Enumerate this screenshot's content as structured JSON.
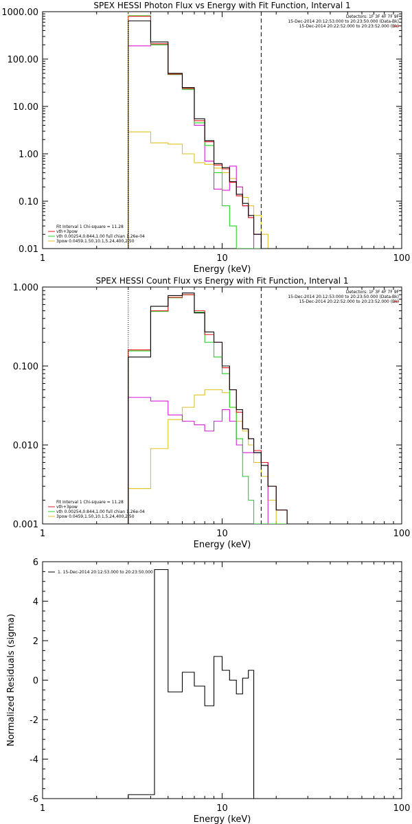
{
  "colors": {
    "black": "#000000",
    "red": "#e8141a",
    "green": "#1fd41f",
    "magenta": "#d81ad8",
    "yellow": "#e0c21c"
  },
  "chart_data": [
    {
      "type": "line",
      "step": true,
      "title": "SPEX HESSI Photon Flux vs Energy with Fit Function, Interval 1",
      "xlabel": "Energy (keV)",
      "ylabel": "",
      "xscale": "log",
      "yscale": "log",
      "xlim": [
        1,
        100
      ],
      "ylim": [
        0.01,
        1000
      ],
      "x_ticks": [
        "1",
        "10",
        "100"
      ],
      "y_ticks": [
        "0.01",
        "0.10",
        "1.00",
        "10.00",
        "100.00",
        "1000.00"
      ],
      "vlines": [
        {
          "x": 3.0,
          "style": "dotted",
          "color": "yellow"
        },
        {
          "x": 16.5,
          "style": "dashed",
          "color": "black"
        }
      ],
      "header_text": [
        "Detectors: 1F 3F 4F 7F 9F",
        "15-Dec-2014 20:12:53.000 to 20:23:50.000 (Data-Bk)",
        "15-Dec-2014 20:22:52.000 to 20:23:52.000 (Bk)"
      ],
      "legend_text": [
        "Fit Interval 1   Chi-square = 11.28",
        "vth+3pow",
        "vth 0.00254,0.844,1.00  full chian 1.26e-04",
        "3pow 0.0459,1.50,10.1,5.24,400,2.50"
      ],
      "bin_edges": [
        3.0,
        4.0,
        5.0,
        6.0,
        7.0,
        8.0,
        9.0,
        10.0,
        11.0,
        12.0,
        13.0,
        14.0,
        15.0,
        16.5,
        18.0,
        20.0
      ],
      "series": [
        {
          "color": "black",
          "values": [
            640,
            230,
            50,
            25,
            5.5,
            1.9,
            0.62,
            0.51,
            0.26,
            0.14,
            0.09,
            0.05,
            0.02,
            0.01,
            0.01
          ]
        },
        {
          "color": "red",
          "values": [
            800,
            210,
            48,
            24,
            5.0,
            1.8,
            0.58,
            0.48,
            0.25,
            0.13,
            0.08,
            0.045,
            0.02,
            0.01,
            0.01
          ]
        },
        {
          "color": "green",
          "values": [
            820,
            200,
            47,
            23,
            4.5,
            1.5,
            0.4,
            0.08,
            0.03,
            0.01,
            0.01,
            0.01,
            0.01,
            0.01,
            0.01
          ]
        },
        {
          "color": "magenta",
          "values": [
            190,
            200,
            47,
            23,
            4.0,
            0.7,
            0.18,
            0.17,
            0.55,
            0.2,
            0.08,
            0.045,
            0.01,
            0.01,
            0.01
          ]
        },
        {
          "color": "yellow",
          "values": [
            2.9,
            1.7,
            1.6,
            1.0,
            0.65,
            0.6,
            0.5,
            0.4,
            0.3,
            0.2,
            0.12,
            0.08,
            0.05,
            0.02,
            0.01
          ]
        }
      ]
    },
    {
      "type": "line",
      "step": true,
      "title": "SPEX HESSI Count Flux vs Energy with Fit Function, Interval 1",
      "xlabel": "Energy (keV)",
      "ylabel": "",
      "xscale": "log",
      "yscale": "log",
      "xlim": [
        1,
        100
      ],
      "ylim": [
        0.001,
        1.0
      ],
      "x_ticks": [
        "1",
        "10",
        "100"
      ],
      "y_ticks": [
        "0.001",
        "0.010",
        "0.100",
        "1.000"
      ],
      "vlines": [
        {
          "x": 3.0,
          "style": "dotted",
          "color": "black"
        },
        {
          "x": 16.5,
          "style": "dashed",
          "color": "black"
        }
      ],
      "header_text": [
        "Detectors: 1F 3F 4F 7F 9F",
        "15-Dec-2014 20:12:53.000 to 20:23:50.000 (Data-Bk)",
        "15-Dec-2014 20:22:52.000 to 20:23:52.000 (Bk)"
      ],
      "legend_text": [
        "Fit Interval 1   Chi-square = 11.28",
        "vth+3pow",
        "vth 0.00254,0.844,1.00  full chian 1.26e-04",
        "3pow 0.0459,1.50,10.1,5.24,400,2.50"
      ],
      "bin_edges": [
        3.0,
        4.0,
        5.0,
        6.0,
        7.0,
        8.0,
        9.0,
        10.0,
        11.0,
        12.0,
        13.0,
        14.0,
        15.0,
        16.5,
        18.0,
        20.0,
        23.0
      ],
      "series": [
        {
          "color": "black",
          "values": [
            0.13,
            0.57,
            0.78,
            0.84,
            0.47,
            0.27,
            0.2,
            0.1,
            0.05,
            0.028,
            0.016,
            0.012,
            0.008,
            0.0055,
            0.003,
            0.0015
          ]
        },
        {
          "color": "red",
          "values": [
            0.16,
            0.5,
            0.74,
            0.8,
            0.5,
            0.25,
            0.2,
            0.095,
            0.05,
            0.026,
            0.016,
            0.012,
            0.0085,
            0.006,
            0.003,
            0.0015
          ]
        },
        {
          "color": "green",
          "values": [
            0.155,
            0.49,
            0.73,
            0.8,
            0.48,
            0.2,
            0.13,
            0.08,
            0.03,
            0.012,
            0.004,
            0.002,
            0.001,
            0.001,
            0.001,
            0.001
          ]
        },
        {
          "color": "magenta",
          "values": [
            0.04,
            0.036,
            0.024,
            0.02,
            0.018,
            0.015,
            0.02,
            0.028,
            0.02,
            0.01,
            0.008,
            0.008,
            0.008,
            0.006,
            0.001,
            0.001
          ]
        },
        {
          "color": "yellow",
          "values": [
            0.0028,
            0.009,
            0.021,
            0.03,
            0.043,
            0.05,
            0.05,
            0.046,
            0.03,
            0.02,
            0.015,
            0.01,
            0.006,
            0.004,
            0.002,
            0.001
          ]
        }
      ]
    },
    {
      "type": "line",
      "step": true,
      "title": "",
      "xlabel": "Energy (keV)",
      "ylabel": "Normalized Residuals (sigma)",
      "xscale": "log",
      "yscale": "linear",
      "xlim": [
        1,
        100
      ],
      "ylim": [
        -6,
        6
      ],
      "x_ticks": [
        "1",
        "10",
        "100"
      ],
      "y_ticks": [
        "-6",
        "-4",
        "-2",
        "0",
        "2",
        "4",
        "6"
      ],
      "legend_text": [
        "1. 15-Dec-2014 20:12:53.000 to 20:23:50.000"
      ],
      "bin_edges": [
        3.0,
        4.2,
        5.0,
        6.0,
        7.0,
        8.0,
        9.0,
        10.0,
        11.0,
        12.0,
        13.0,
        14.0,
        15.0,
        16.5
      ],
      "series": [
        {
          "color": "black",
          "values": [
            -5.8,
            5.6,
            -0.6,
            0.4,
            -0.3,
            -1.3,
            1.2,
            0.5,
            0.0,
            -0.7,
            0.1,
            0.5,
            -6.0
          ]
        }
      ]
    }
  ]
}
